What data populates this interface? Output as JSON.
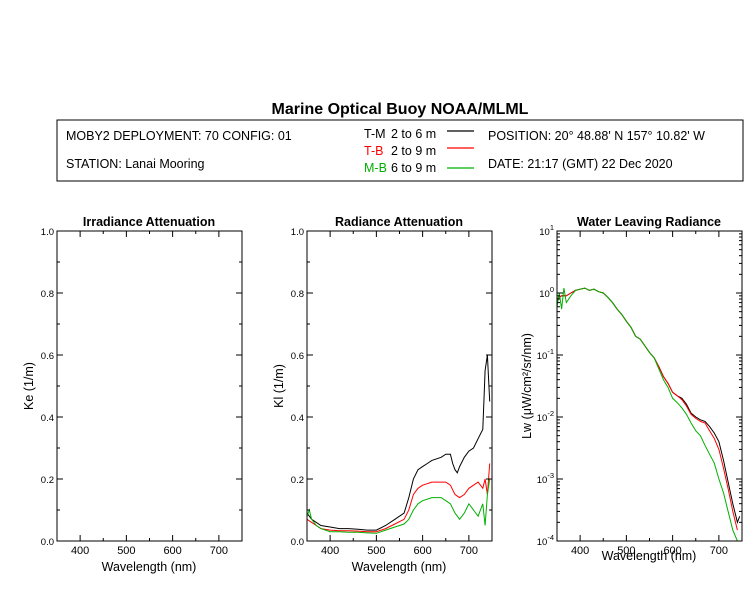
{
  "header": {
    "title": "Marine Optical Buoy NOAA/MLML",
    "deployment": "MOBY2 DEPLOYMENT: 70 CONFIG: 01",
    "station": "STATION: Lanai Mooring",
    "position": "POSITION: 20° 48.88' N   157° 10.82' W",
    "date": "DATE: 21:17 (GMT) 22 Dec 2020",
    "legend": [
      {
        "code": "T-M",
        "range": "2 to 6  m",
        "color": "#000000"
      },
      {
        "code": "T-B",
        "range": "2 to 9  m",
        "color": "#ff0000"
      },
      {
        "code": "M-B",
        "range": "6 to 9  m",
        "color": "#00b000"
      }
    ]
  },
  "chart_data": [
    {
      "type": "line",
      "title": "Irradiance Attenuation",
      "xlabel": "Wavelength (nm)",
      "ylabel": "Ke  (1/m)",
      "xlim": [
        350,
        750
      ],
      "ylim": [
        0,
        1.0
      ],
      "xticks": [
        "400",
        "500",
        "600",
        "700"
      ],
      "yticks": [
        "0.0",
        "0.2",
        "0.4",
        "0.6",
        "0.8",
        "1.0"
      ],
      "series": []
    },
    {
      "type": "line",
      "title": "Radiance Attenuation",
      "xlabel": "Wavelength (nm)",
      "ylabel": "Kl  (1/m)",
      "xlim": [
        350,
        750
      ],
      "ylim": [
        0,
        1.0
      ],
      "xticks": [
        "400",
        "500",
        "600",
        "700"
      ],
      "yticks": [
        "0.0",
        "0.2",
        "0.4",
        "0.6",
        "0.8",
        "1.0"
      ],
      "series": [
        {
          "name": "T-M",
          "color": "#000000",
          "x": [
            350,
            360,
            370,
            380,
            400,
            420,
            440,
            460,
            480,
            500,
            520,
            540,
            560,
            570,
            580,
            590,
            600,
            610,
            620,
            640,
            650,
            660,
            665,
            670,
            675,
            680,
            690,
            700,
            710,
            720,
            730,
            735,
            740,
            745
          ],
          "y": [
            0.09,
            0.07,
            0.06,
            0.05,
            0.045,
            0.04,
            0.04,
            0.038,
            0.035,
            0.035,
            0.05,
            0.07,
            0.09,
            0.14,
            0.2,
            0.23,
            0.24,
            0.25,
            0.26,
            0.27,
            0.28,
            0.28,
            0.25,
            0.23,
            0.22,
            0.24,
            0.27,
            0.29,
            0.3,
            0.33,
            0.36,
            0.55,
            0.6,
            0.45
          ]
        },
        {
          "name": "T-B",
          "color": "#ff0000",
          "x": [
            350,
            360,
            370,
            380,
            400,
            420,
            440,
            460,
            480,
            500,
            520,
            540,
            560,
            570,
            580,
            590,
            600,
            620,
            640,
            650,
            660,
            670,
            680,
            690,
            700,
            710,
            720,
            730,
            735,
            740,
            745
          ],
          "y": [
            0.07,
            0.06,
            0.05,
            0.04,
            0.035,
            0.033,
            0.033,
            0.032,
            0.03,
            0.03,
            0.04,
            0.055,
            0.07,
            0.1,
            0.15,
            0.17,
            0.18,
            0.19,
            0.19,
            0.19,
            0.18,
            0.15,
            0.14,
            0.15,
            0.17,
            0.18,
            0.19,
            0.17,
            0.2,
            0.15,
            0.25
          ]
        },
        {
          "name": "M-B",
          "color": "#00b000",
          "x": [
            350,
            355,
            360,
            370,
            380,
            400,
            420,
            440,
            460,
            480,
            500,
            520,
            540,
            560,
            570,
            580,
            590,
            600,
            620,
            640,
            650,
            660,
            670,
            680,
            690,
            700,
            710,
            720,
            730,
            735,
            740,
            745
          ],
          "y": [
            0.08,
            0.1,
            0.07,
            0.05,
            0.04,
            0.03,
            0.03,
            0.028,
            0.028,
            0.026,
            0.025,
            0.035,
            0.045,
            0.055,
            0.07,
            0.1,
            0.12,
            0.13,
            0.14,
            0.14,
            0.13,
            0.12,
            0.09,
            0.07,
            0.09,
            0.12,
            0.1,
            0.08,
            0.12,
            0.05,
            0.15,
            0.2
          ]
        }
      ]
    },
    {
      "type": "line",
      "title": "Water Leaving Radiance",
      "xlabel": "Wavelength (nm)",
      "ylabel": "Lw  (μW/cm²/sr/nm)",
      "xlim": [
        350,
        750
      ],
      "ylim": [
        0.0001,
        10
      ],
      "yscale": "log",
      "xticks": [
        "400",
        "500",
        "600",
        "700"
      ],
      "series": [
        {
          "name": "T-M",
          "color": "#000000",
          "x": [
            350,
            360,
            370,
            380,
            390,
            400,
            410,
            420,
            430,
            440,
            450,
            460,
            470,
            480,
            490,
            500,
            510,
            520,
            530,
            540,
            550,
            560,
            570,
            580,
            590,
            600,
            610,
            620,
            630,
            640,
            650,
            660,
            670,
            680,
            690,
            700,
            710,
            720,
            730,
            740,
            745
          ],
          "y": [
            0.8,
            0.9,
            0.9,
            1.0,
            1.1,
            1.15,
            1.2,
            1.1,
            1.15,
            1.05,
            1.0,
            0.85,
            0.7,
            0.55,
            0.45,
            0.35,
            0.28,
            0.2,
            0.18,
            0.14,
            0.11,
            0.09,
            0.065,
            0.045,
            0.035,
            0.025,
            0.022,
            0.02,
            0.016,
            0.0115,
            0.01,
            0.009,
            0.0085,
            0.007,
            0.0055,
            0.004,
            0.002,
            0.0009,
            0.0004,
            0.0002,
            0.00025
          ]
        },
        {
          "name": "T-B",
          "color": "#ff0000",
          "x": [
            350,
            360,
            370,
            380,
            390,
            400,
            410,
            420,
            430,
            440,
            450,
            460,
            470,
            480,
            490,
            500,
            510,
            520,
            530,
            540,
            550,
            560,
            570,
            580,
            590,
            600,
            610,
            620,
            630,
            640,
            650,
            660,
            670,
            680,
            690,
            700,
            710,
            720,
            730,
            740
          ],
          "y": [
            0.8,
            0.9,
            0.9,
            1.0,
            1.1,
            1.15,
            1.2,
            1.1,
            1.15,
            1.05,
            1.0,
            0.85,
            0.7,
            0.55,
            0.45,
            0.35,
            0.28,
            0.2,
            0.18,
            0.14,
            0.11,
            0.09,
            0.065,
            0.045,
            0.035,
            0.025,
            0.022,
            0.019,
            0.015,
            0.011,
            0.0095,
            0.0085,
            0.008,
            0.006,
            0.0045,
            0.003,
            0.0015,
            0.0007,
            0.0003,
            0.00015
          ]
        },
        {
          "name": "M-B",
          "color": "#00b000",
          "x": [
            350,
            355,
            360,
            365,
            370,
            380,
            390,
            400,
            410,
            420,
            430,
            440,
            450,
            460,
            470,
            480,
            490,
            500,
            510,
            520,
            530,
            540,
            550,
            560,
            570,
            580,
            590,
            600,
            610,
            620,
            630,
            640,
            650,
            660,
            670,
            680,
            690,
            700,
            710,
            720,
            730,
            740
          ],
          "y": [
            0.6,
            1.0,
            0.55,
            1.2,
            0.7,
            0.9,
            1.1,
            1.15,
            1.2,
            1.1,
            1.15,
            1.05,
            1.0,
            0.85,
            0.7,
            0.55,
            0.45,
            0.35,
            0.28,
            0.2,
            0.18,
            0.14,
            0.11,
            0.09,
            0.06,
            0.04,
            0.03,
            0.02,
            0.017,
            0.014,
            0.011,
            0.008,
            0.006,
            0.005,
            0.0035,
            0.0025,
            0.0018,
            0.001,
            0.0006,
            0.0003,
            0.00015,
            0.0001
          ]
        }
      ]
    }
  ]
}
